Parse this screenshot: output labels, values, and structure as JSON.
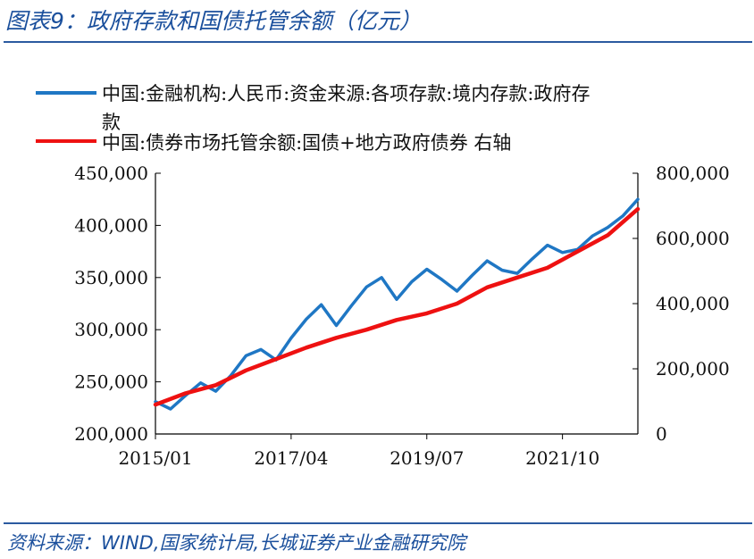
{
  "header": {
    "title": "图表9：政府存款和国债托管余额（亿元）"
  },
  "footer": {
    "source": "资料来源：WIND,国家统计局,长城证券产业金融研究院"
  },
  "colors": {
    "accent": "#1a4f9c",
    "series_left": "#1f77c4",
    "series_right": "#ee1111"
  },
  "chart_data": {
    "type": "line",
    "x_ticks": [
      "2015/01",
      "2017/04",
      "2019/07",
      "2021/10"
    ],
    "x_range": [
      "2015/01",
      "2023/01"
    ],
    "ylim_left": [
      200000,
      450000
    ],
    "ylim_right": [
      0,
      800000
    ],
    "yticks_left": [
      "450,000",
      "400,000",
      "350,000",
      "300,000",
      "250,000",
      "200,000"
    ],
    "yticks_right": [
      "800,000",
      "600,000",
      "400,000",
      "200,000",
      "0"
    ],
    "legend": [
      {
        "line1": "中国:金融机构:人民币:资金来源:各项存款:境内存款:政府存",
        "line2": "款"
      },
      {
        "line1": "中国:债券市场托管余额:国债+地方政府债券 右轴",
        "line2": ""
      }
    ],
    "series": [
      {
        "name": "中国:金融机构:人民币:资金来源:各项存款:境内存款:政府存款",
        "axis": "left",
        "x": [
          "2015/01",
          "2015/04",
          "2015/07",
          "2015/10",
          "2016/01",
          "2016/04",
          "2016/07",
          "2016/10",
          "2017/01",
          "2017/04",
          "2017/07",
          "2017/10",
          "2018/01",
          "2018/04",
          "2018/07",
          "2018/10",
          "2019/01",
          "2019/04",
          "2019/07",
          "2019/10",
          "2020/01",
          "2020/04",
          "2020/07",
          "2020/10",
          "2021/01",
          "2021/04",
          "2021/07",
          "2021/10",
          "2022/01",
          "2022/04",
          "2022/07",
          "2022/10",
          "2023/01"
        ],
        "values": [
          231000,
          224000,
          237000,
          249000,
          241000,
          256000,
          275000,
          281000,
          271000,
          292000,
          310000,
          324000,
          304000,
          323000,
          341000,
          350000,
          329000,
          346000,
          358000,
          348000,
          337000,
          352000,
          366000,
          357000,
          354000,
          368000,
          381000,
          374000,
          377000,
          390000,
          398000,
          409000,
          425000
        ]
      },
      {
        "name": "中国:债券市场托管余额:国债+地方政府债券",
        "axis": "right",
        "x": [
          "2015/01",
          "2015/07",
          "2016/01",
          "2016/07",
          "2017/01",
          "2017/07",
          "2017/10",
          "2018/01",
          "2018/07",
          "2019/01",
          "2019/07",
          "2020/01",
          "2020/07",
          "2021/01",
          "2021/07",
          "2022/01",
          "2022/07",
          "2023/01"
        ],
        "values": [
          90000,
          125000,
          150000,
          195000,
          230000,
          265000,
          280000,
          295000,
          320000,
          350000,
          370000,
          400000,
          450000,
          480000,
          510000,
          560000,
          610000,
          690000
        ]
      }
    ],
    "grid": false
  }
}
